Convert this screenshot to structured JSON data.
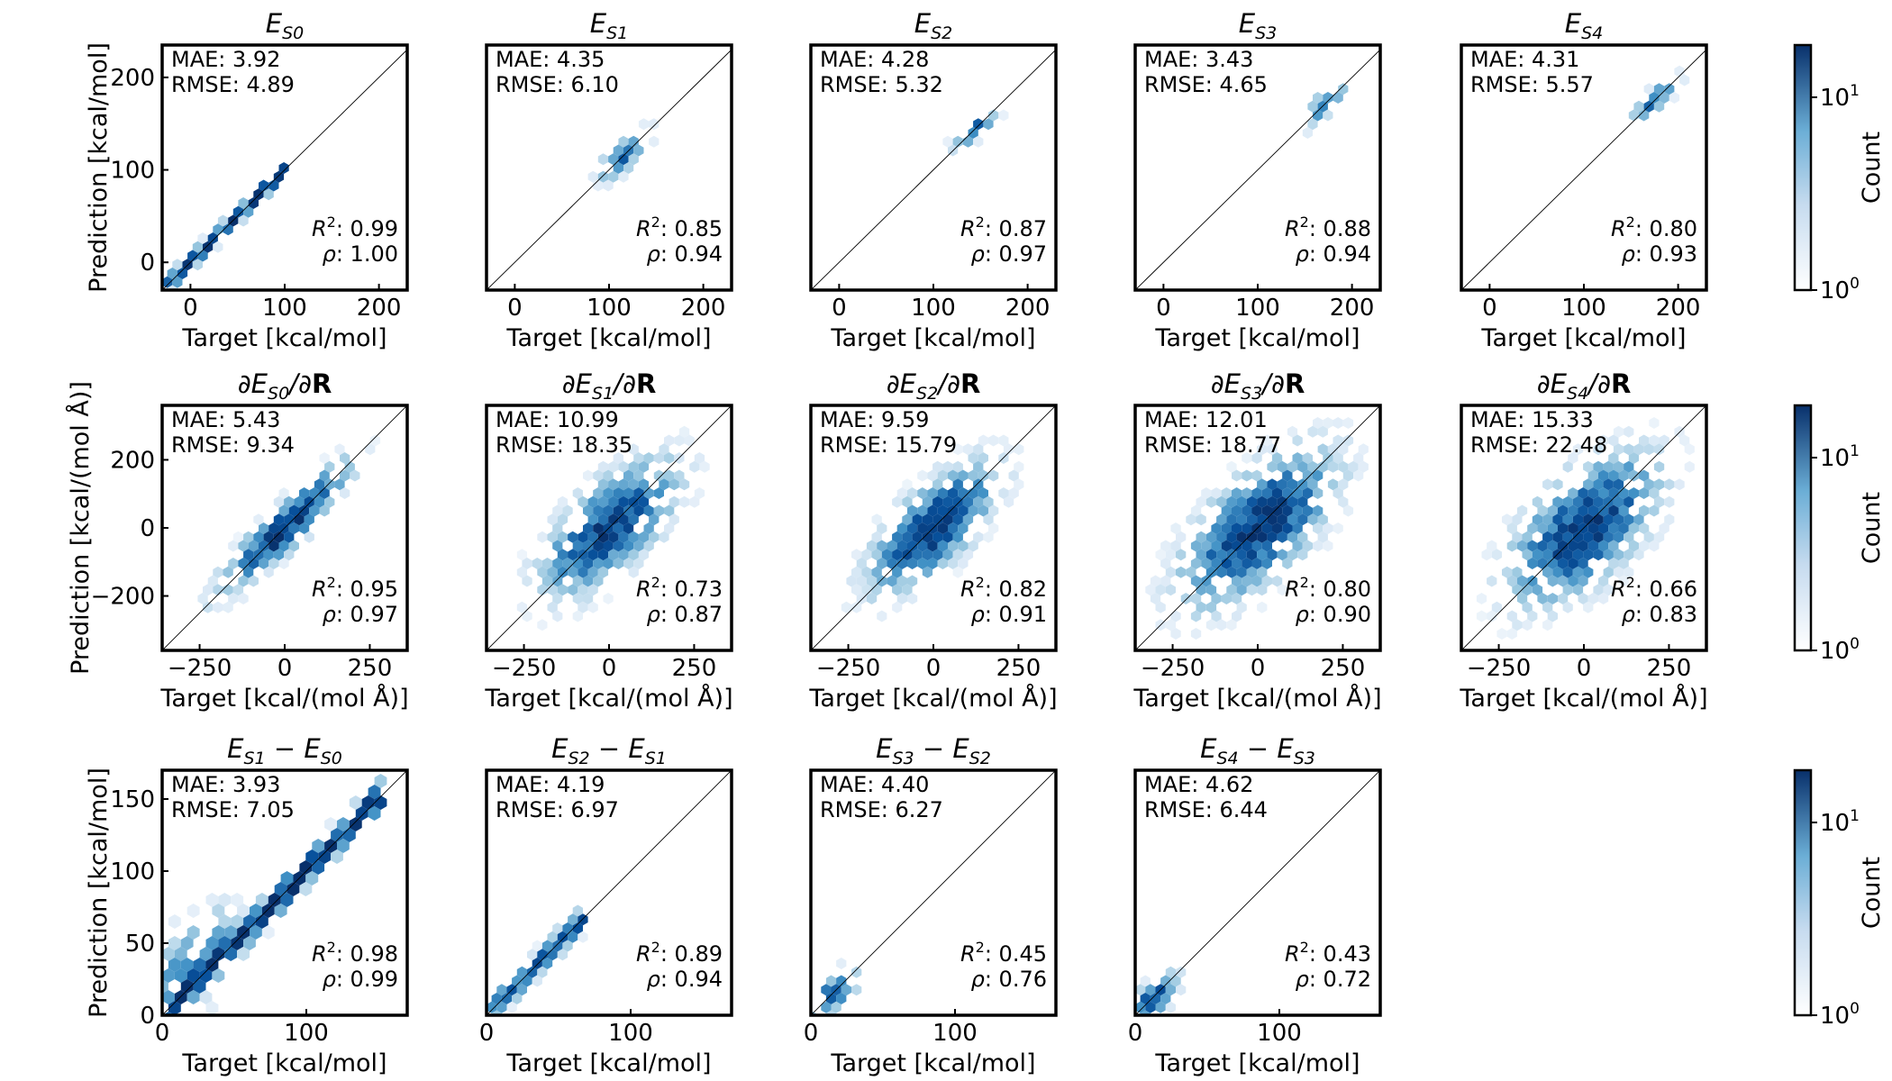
{
  "colorbar": {
    "label": "Count",
    "tick_low": "10",
    "tick_low_exp": "0",
    "tick_high": "10",
    "tick_high_exp": "1"
  },
  "chart_data": [
    {
      "type": "hexbin-scatter",
      "row": 0,
      "col": 0,
      "title": {
        "parts": [
          [
            "E",
            ""
          ],
          [
            "S0",
            "sub"
          ]
        ]
      },
      "xlabel": "Target [kcal/mol]",
      "ylabel": "Prediction [kcal/mol]",
      "xlim": [
        -30,
        230
      ],
      "ylim": [
        -30,
        235
      ],
      "xticks": [
        {
          "v": 0,
          "t": "0"
        },
        {
          "v": 100,
          "t": "100"
        },
        {
          "v": 200,
          "t": "200"
        }
      ],
      "yticks": [
        {
          "v": 0,
          "t": "0"
        },
        {
          "v": 100,
          "t": "100"
        },
        {
          "v": 200,
          "t": "200"
        }
      ],
      "stats": {
        "mae": "3.92",
        "rmse": "4.89",
        "r2": "0.99",
        "rho": "1.00"
      },
      "cloud": {
        "kind": "line",
        "x0": -28,
        "x1": 100,
        "width": 8,
        "density": 0.95
      }
    },
    {
      "type": "hexbin-scatter",
      "row": 0,
      "col": 1,
      "title": {
        "parts": [
          [
            "E",
            ""
          ],
          [
            "S1",
            "sub"
          ]
        ]
      },
      "xlabel": "Target [kcal/mol]",
      "ylabel": "",
      "xlim": [
        -30,
        230
      ],
      "ylim": [
        -30,
        235
      ],
      "xticks": [
        {
          "v": 0,
          "t": "0"
        },
        {
          "v": 100,
          "t": "100"
        },
        {
          "v": 200,
          "t": "200"
        }
      ],
      "yticks": [],
      "stats": {
        "mae": "4.35",
        "rmse": "6.10",
        "r2": "0.85",
        "rho": "0.94"
      },
      "cloud": {
        "kind": "blob",
        "cx": 115,
        "cy": 115,
        "sa": 22,
        "sb": 8,
        "density": 0.6
      }
    },
    {
      "type": "hexbin-scatter",
      "row": 0,
      "col": 2,
      "title": {
        "parts": [
          [
            "E",
            ""
          ],
          [
            "S2",
            "sub"
          ]
        ]
      },
      "xlabel": "Target [kcal/mol]",
      "ylabel": "",
      "xlim": [
        -30,
        230
      ],
      "ylim": [
        -30,
        235
      ],
      "xticks": [
        {
          "v": 0,
          "t": "0"
        },
        {
          "v": 100,
          "t": "100"
        },
        {
          "v": 200,
          "t": "200"
        }
      ],
      "yticks": [],
      "stats": {
        "mae": "4.28",
        "rmse": "5.32",
        "r2": "0.87",
        "rho": "0.97"
      },
      "cloud": {
        "kind": "blob",
        "cx": 145,
        "cy": 145,
        "sa": 20,
        "sb": 6,
        "density": 0.7
      }
    },
    {
      "type": "hexbin-scatter",
      "row": 0,
      "col": 3,
      "title": {
        "parts": [
          [
            "E",
            ""
          ],
          [
            "S3",
            "sub"
          ]
        ]
      },
      "xlabel": "Target [kcal/mol]",
      "ylabel": "",
      "xlim": [
        -30,
        230
      ],
      "ylim": [
        -30,
        235
      ],
      "xticks": [
        {
          "v": 0,
          "t": "0"
        },
        {
          "v": 100,
          "t": "100"
        },
        {
          "v": 200,
          "t": "200"
        }
      ],
      "yticks": [],
      "stats": {
        "mae": "3.43",
        "rmse": "4.65",
        "r2": "0.88",
        "rho": "0.94"
      },
      "cloud": {
        "kind": "blob",
        "cx": 170,
        "cy": 170,
        "sa": 20,
        "sb": 6,
        "density": 0.7
      }
    },
    {
      "type": "hexbin-scatter",
      "row": 0,
      "col": 4,
      "title": {
        "parts": [
          [
            "E",
            ""
          ],
          [
            "S4",
            "sub"
          ]
        ]
      },
      "xlabel": "Target [kcal/mol]",
      "ylabel": "",
      "xlim": [
        -30,
        230
      ],
      "ylim": [
        -30,
        235
      ],
      "xticks": [
        {
          "v": 0,
          "t": "0"
        },
        {
          "v": 100,
          "t": "100"
        },
        {
          "v": 200,
          "t": "200"
        }
      ],
      "yticks": [],
      "stats": {
        "mae": "4.31",
        "rmse": "5.57",
        "r2": "0.80",
        "rho": "0.93"
      },
      "cloud": {
        "kind": "blob",
        "cx": 175,
        "cy": 175,
        "sa": 20,
        "sb": 6,
        "density": 0.7
      }
    },
    {
      "type": "hexbin-scatter",
      "row": 1,
      "col": 0,
      "title": {
        "parts": [
          [
            "∂E",
            ""
          ],
          [
            "S0",
            "sub"
          ],
          [
            "/∂",
            ""
          ],
          [
            "R",
            "bold"
          ]
        ]
      },
      "xlabel": "Target [kcal/(mol Å)]",
      "ylabel": "Prediction [kcal/(mol Å)]",
      "xlim": [
        -360,
        360
      ],
      "ylim": [
        -360,
        360
      ],
      "xticks": [
        {
          "v": -250,
          "t": "−250"
        },
        {
          "v": 0,
          "t": "0"
        },
        {
          "v": 250,
          "t": "250"
        }
      ],
      "yticks": [
        {
          "v": -200,
          "t": "−200"
        },
        {
          "v": 0,
          "t": "0"
        },
        {
          "v": 200,
          "t": "200"
        }
      ],
      "stats": {
        "mae": "5.43",
        "rmse": "9.34",
        "r2": "0.95",
        "rho": "0.97"
      },
      "cloud": {
        "kind": "blob",
        "cx": 0,
        "cy": 0,
        "sa": 150,
        "sb": 32,
        "density": 1.0
      }
    },
    {
      "type": "hexbin-scatter",
      "row": 1,
      "col": 1,
      "title": {
        "parts": [
          [
            "∂E",
            ""
          ],
          [
            "S1",
            "sub"
          ],
          [
            "/∂",
            ""
          ],
          [
            "R",
            "bold"
          ]
        ]
      },
      "xlabel": "Target [kcal/(mol Å)]",
      "ylabel": "",
      "xlim": [
        -360,
        360
      ],
      "ylim": [
        -360,
        360
      ],
      "xticks": [
        {
          "v": -250,
          "t": "−250"
        },
        {
          "v": 0,
          "t": "0"
        },
        {
          "v": 250,
          "t": "250"
        }
      ],
      "yticks": [],
      "stats": {
        "mae": "10.99",
        "rmse": "18.35",
        "r2": "0.73",
        "rho": "0.87"
      },
      "cloud": {
        "kind": "blob",
        "cx": 0,
        "cy": 0,
        "sa": 150,
        "sb": 65,
        "density": 0.9
      }
    },
    {
      "type": "hexbin-scatter",
      "row": 1,
      "col": 2,
      "title": {
        "parts": [
          [
            "∂E",
            ""
          ],
          [
            "S2",
            "sub"
          ],
          [
            "/∂",
            ""
          ],
          [
            "R",
            "bold"
          ]
        ]
      },
      "xlabel": "Target [kcal/(mol Å)]",
      "ylabel": "",
      "xlim": [
        -360,
        360
      ],
      "ylim": [
        -360,
        360
      ],
      "xticks": [
        {
          "v": -250,
          "t": "−250"
        },
        {
          "v": 0,
          "t": "0"
        },
        {
          "v": 250,
          "t": "250"
        }
      ],
      "yticks": [],
      "stats": {
        "mae": "9.59",
        "rmse": "15.79",
        "r2": "0.82",
        "rho": "0.91"
      },
      "cloud": {
        "kind": "blob",
        "cx": 0,
        "cy": 0,
        "sa": 140,
        "sb": 58,
        "density": 0.95
      }
    },
    {
      "type": "hexbin-scatter",
      "row": 1,
      "col": 3,
      "title": {
        "parts": [
          [
            "∂E",
            ""
          ],
          [
            "S3",
            "sub"
          ],
          [
            "/∂",
            ""
          ],
          [
            "R",
            "bold"
          ]
        ]
      },
      "xlabel": "Target [kcal/(mol Å)]",
      "ylabel": "",
      "xlim": [
        -360,
        360
      ],
      "ylim": [
        -360,
        360
      ],
      "xticks": [
        {
          "v": -250,
          "t": "−250"
        },
        {
          "v": 0,
          "t": "0"
        },
        {
          "v": 250,
          "t": "250"
        }
      ],
      "yticks": [],
      "stats": {
        "mae": "12.01",
        "rmse": "18.77",
        "r2": "0.80",
        "rho": "0.90"
      },
      "cloud": {
        "kind": "blob",
        "cx": 0,
        "cy": 0,
        "sa": 165,
        "sb": 75,
        "density": 1.0
      }
    },
    {
      "type": "hexbin-scatter",
      "row": 1,
      "col": 4,
      "title": {
        "parts": [
          [
            "∂E",
            ""
          ],
          [
            "S4",
            "sub"
          ],
          [
            "/∂",
            ""
          ],
          [
            "R",
            "bold"
          ]
        ]
      },
      "xlabel": "Target [kcal/(mol Å)]",
      "ylabel": "",
      "xlim": [
        -360,
        360
      ],
      "ylim": [
        -360,
        360
      ],
      "xticks": [
        {
          "v": -250,
          "t": "−250"
        },
        {
          "v": 0,
          "t": "0"
        },
        {
          "v": 250,
          "t": "250"
        }
      ],
      "yticks": [],
      "stats": {
        "mae": "15.33",
        "rmse": "22.48",
        "r2": "0.66",
        "rho": "0.83"
      },
      "cloud": {
        "kind": "blob",
        "cx": 0,
        "cy": 0,
        "sa": 160,
        "sb": 80,
        "density": 0.95
      }
    },
    {
      "type": "hexbin-scatter",
      "row": 2,
      "col": 0,
      "title": {
        "parts": [
          [
            "E",
            ""
          ],
          [
            "S1",
            "sub"
          ],
          [
            " − E",
            ""
          ],
          [
            "S0",
            "sub"
          ]
        ]
      },
      "xlabel": "Target [kcal/mol]",
      "ylabel": "Prediction [kcal/mol]",
      "xlim": [
        0,
        170
      ],
      "ylim": [
        0,
        170
      ],
      "xticks": [
        {
          "v": 0,
          "t": "0"
        },
        {
          "v": 100,
          "t": "100"
        }
      ],
      "yticks": [
        {
          "v": 0,
          "t": "0"
        },
        {
          "v": 50,
          "t": "50"
        },
        {
          "v": 100,
          "t": "100"
        },
        {
          "v": 150,
          "t": "150"
        }
      ],
      "stats": {
        "mae": "3.93",
        "rmse": "7.05",
        "r2": "0.98",
        "rho": "0.99"
      },
      "cloud": {
        "kind": "line",
        "x0": 2,
        "x1": 152,
        "width": 9,
        "density": 1.0,
        "extra": {
          "cx": 25,
          "cy": 38,
          "sa": 26,
          "sb": 14
        }
      }
    },
    {
      "type": "hexbin-scatter",
      "row": 2,
      "col": 1,
      "title": {
        "parts": [
          [
            "E",
            ""
          ],
          [
            "S2",
            "sub"
          ],
          [
            " − E",
            ""
          ],
          [
            "S1",
            "sub"
          ]
        ]
      },
      "xlabel": "Target [kcal/mol]",
      "ylabel": "",
      "xlim": [
        0,
        170
      ],
      "ylim": [
        0,
        170
      ],
      "xticks": [
        {
          "v": 0,
          "t": "0"
        },
        {
          "v": 100,
          "t": "100"
        }
      ],
      "yticks": [],
      "stats": {
        "mae": "4.19",
        "rmse": "6.97",
        "r2": "0.89",
        "rho": "0.94"
      },
      "cloud": {
        "kind": "line",
        "x0": 2,
        "x1": 68,
        "width": 8,
        "density": 0.7
      }
    },
    {
      "type": "hexbin-scatter",
      "row": 2,
      "col": 2,
      "title": {
        "parts": [
          [
            "E",
            ""
          ],
          [
            "S3",
            "sub"
          ],
          [
            " − E",
            ""
          ],
          [
            "S2",
            "sub"
          ]
        ]
      },
      "xlabel": "Target [kcal/mol]",
      "ylabel": "",
      "xlim": [
        0,
        170
      ],
      "ylim": [
        0,
        170
      ],
      "xticks": [
        {
          "v": 0,
          "t": "0"
        },
        {
          "v": 100,
          "t": "100"
        }
      ],
      "yticks": [],
      "stats": {
        "mae": "4.40",
        "rmse": "6.27",
        "r2": "0.45",
        "rho": "0.76"
      },
      "cloud": {
        "kind": "blob",
        "cx": 15,
        "cy": 14,
        "sa": 14,
        "sb": 6,
        "density": 0.75
      }
    },
    {
      "type": "hexbin-scatter",
      "row": 2,
      "col": 3,
      "title": {
        "parts": [
          [
            "E",
            ""
          ],
          [
            "S4",
            "sub"
          ],
          [
            " − E",
            ""
          ],
          [
            "S3",
            "sub"
          ]
        ]
      },
      "xlabel": "Target [kcal/mol]",
      "ylabel": "",
      "xlim": [
        0,
        170
      ],
      "ylim": [
        0,
        170
      ],
      "xticks": [
        {
          "v": 0,
          "t": "0"
        },
        {
          "v": 100,
          "t": "100"
        }
      ],
      "yticks": [],
      "stats": {
        "mae": "4.62",
        "rmse": "6.44",
        "r2": "0.43",
        "rho": "0.72"
      },
      "cloud": {
        "kind": "blob",
        "cx": 13,
        "cy": 12,
        "sa": 13,
        "sb": 6,
        "density": 0.75
      }
    }
  ]
}
